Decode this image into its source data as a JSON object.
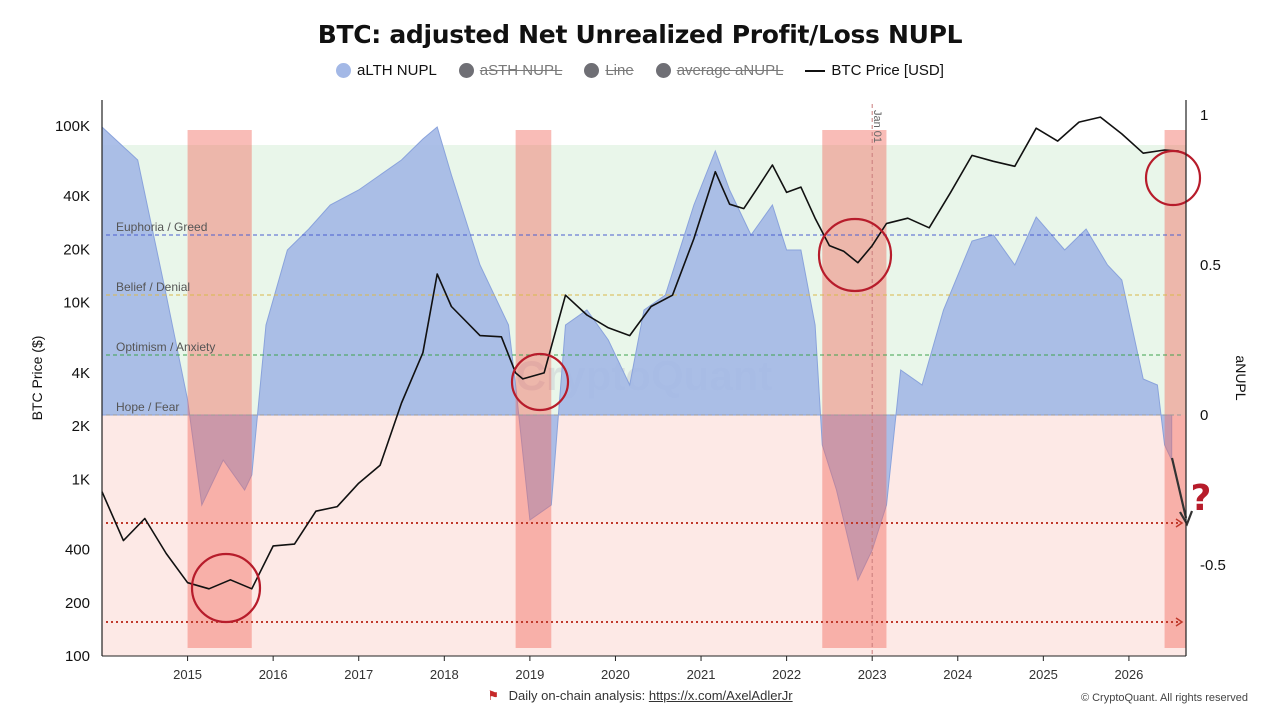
{
  "chart_data": {
    "type": "area",
    "title": "BTC: adjusted Net Unrealized Profit/Loss NUPL",
    "ylabel_left": "BTC Price ($)",
    "ylabel_right": "aNUPL",
    "left_axis": {
      "scale": "log",
      "range": [
        100,
        140000
      ],
      "ticks": [
        "100",
        "200",
        "400",
        "1K",
        "2K",
        "4K",
        "10K",
        "20K",
        "40K",
        "100K"
      ]
    },
    "right_axis": {
      "range": [
        -0.8,
        1.0
      ],
      "ticks": [
        "1",
        "0.5",
        "0",
        "-0.5"
      ]
    },
    "x_axis": {
      "range": [
        "2014-01",
        "2026-09"
      ],
      "ticks": [
        "2015",
        "2016",
        "2017",
        "2018",
        "2019",
        "2020",
        "2021",
        "2022",
        "2023",
        "2024",
        "2025",
        "2026"
      ]
    },
    "legend": [
      {
        "label": "aLTH NUPL",
        "color": "#a3b8e6",
        "active": true,
        "marker": "dot"
      },
      {
        "label": "aSTH NUPL",
        "color": "#6f6f75",
        "active": false,
        "marker": "dot"
      },
      {
        "label": "Line",
        "color": "#6f6f75",
        "active": false,
        "marker": "dot"
      },
      {
        "label": "average aNUPL",
        "color": "#6f6f75",
        "active": false,
        "marker": "dot"
      },
      {
        "label": "BTC Price [USD]",
        "color": "#111111",
        "active": true,
        "marker": "line"
      }
    ],
    "zones": [
      {
        "label": "Euphoria / Greed",
        "value": 0.6,
        "color": "#4a5fd0"
      },
      {
        "label": "Belief / Denial",
        "value": 0.4,
        "color": "#d9b84a"
      },
      {
        "label": "Optimism / Anxiety",
        "value": 0.2,
        "color": "#3fa34d"
      },
      {
        "label": "Hope / Fear",
        "value": 0.0,
        "color": "#9a9a9a"
      }
    ],
    "reference_levels_anupl": [
      -0.36,
      -0.69
    ],
    "bear_periods": [
      [
        "2015-01",
        "2015-10"
      ],
      [
        "2018-11",
        "2019-04"
      ],
      [
        "2022-06",
        "2023-03"
      ],
      [
        "2026-06",
        "2026-09"
      ]
    ],
    "vline_label": "Jan 01",
    "vline_date": "2023-01-01",
    "price_series": {
      "name": "BTC Price [USD]",
      "color": "#111111",
      "x": [
        "2014-01",
        "2014-04",
        "2014-07",
        "2014-10",
        "2015-01",
        "2015-04",
        "2015-07",
        "2015-10",
        "2016-01",
        "2016-04",
        "2016-07",
        "2016-10",
        "2017-01",
        "2017-04",
        "2017-07",
        "2017-10",
        "2017-12",
        "2018-02",
        "2018-06",
        "2018-09",
        "2018-11",
        "2018-12",
        "2019-03",
        "2019-06",
        "2019-09",
        "2019-12",
        "2020-03",
        "2020-06",
        "2020-09",
        "2020-12",
        "2021-03",
        "2021-05",
        "2021-07",
        "2021-09",
        "2021-11",
        "2022-01",
        "2022-03",
        "2022-05",
        "2022-07",
        "2022-09",
        "2022-11",
        "2023-01",
        "2023-03",
        "2023-06",
        "2023-09",
        "2023-12",
        "2024-03",
        "2024-06",
        "2024-09",
        "2024-12",
        "2025-03",
        "2025-06",
        "2025-09",
        "2025-12",
        "2026-03",
        "2026-06",
        "2026-08"
      ],
      "y": [
        850,
        450,
        600,
        380,
        260,
        240,
        270,
        240,
        420,
        430,
        660,
        700,
        950,
        1200,
        2700,
        5200,
        14500,
        9500,
        6500,
        6400,
        4000,
        3700,
        4000,
        11000,
        8500,
        7200,
        6500,
        9500,
        11000,
        23000,
        55000,
        36000,
        34000,
        45000,
        60000,
        42000,
        45000,
        30000,
        21000,
        19500,
        16800,
        21000,
        28000,
        30000,
        26500,
        42000,
        68000,
        63000,
        59000,
        97000,
        82000,
        105000,
        112000,
        90000,
        70000,
        73000,
        72000
      ]
    },
    "alth_series": {
      "name": "aLTH NUPL",
      "color": "#a3b8e6",
      "x": [
        "2014-01",
        "2014-06",
        "2014-10",
        "2015-01",
        "2015-03",
        "2015-06",
        "2015-09",
        "2015-10",
        "2015-12",
        "2016-03",
        "2016-06",
        "2016-09",
        "2017-01",
        "2017-04",
        "2017-07",
        "2017-10",
        "2017-12",
        "2018-02",
        "2018-06",
        "2018-10",
        "2018-11",
        "2019-01",
        "2019-04",
        "2019-06",
        "2019-09",
        "2019-12",
        "2020-03",
        "2020-05",
        "2020-08",
        "2020-12",
        "2021-03",
        "2021-05",
        "2021-08",
        "2021-11",
        "2022-01",
        "2022-03",
        "2022-05",
        "2022-06",
        "2022-08",
        "2022-11",
        "2023-01",
        "2023-03",
        "2023-05",
        "2023-08",
        "2023-11",
        "2024-03",
        "2024-06",
        "2024-09",
        "2024-12",
        "2025-04",
        "2025-07",
        "2025-10",
        "2025-12",
        "2026-03",
        "2026-05",
        "2026-06",
        "2026-07"
      ],
      "y": [
        0.96,
        0.85,
        0.4,
        0.05,
        -0.3,
        -0.15,
        -0.25,
        -0.2,
        0.3,
        0.55,
        0.62,
        0.7,
        0.75,
        0.8,
        0.85,
        0.92,
        0.96,
        0.8,
        0.5,
        0.3,
        0.1,
        -0.35,
        -0.3,
        0.3,
        0.35,
        0.25,
        0.1,
        0.35,
        0.4,
        0.7,
        0.88,
        0.75,
        0.6,
        0.7,
        0.55,
        0.55,
        0.3,
        -0.1,
        -0.25,
        -0.55,
        -0.45,
        -0.3,
        0.15,
        0.1,
        0.35,
        0.58,
        0.6,
        0.5,
        0.66,
        0.55,
        0.62,
        0.5,
        0.45,
        0.12,
        0.1,
        -0.1,
        -0.15
      ]
    }
  },
  "annotations": {
    "question_mark": "?"
  },
  "footer": {
    "prefix": "Daily on-chain analysis:",
    "link": "https://x.com/AxelAdlerJr"
  },
  "copyright": "© CryptoQuant. All rights reserved",
  "watermark": "CryptoQuant"
}
